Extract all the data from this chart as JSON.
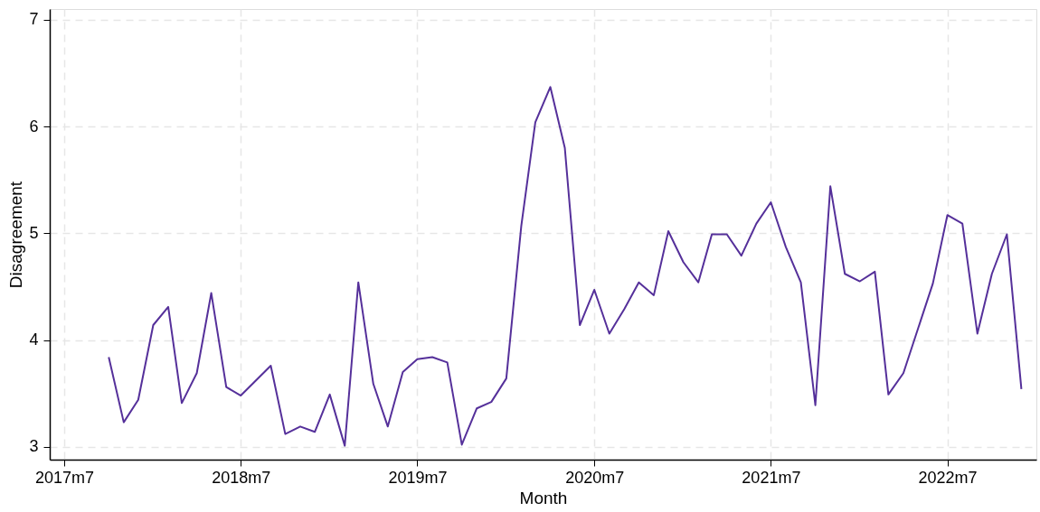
{
  "chart_data": {
    "type": "line",
    "xlabel": "Month",
    "ylabel": "Disagreement",
    "x": [
      "2017-10",
      "2017-11",
      "2017-12",
      "2018-01",
      "2018-02",
      "2018-03",
      "2018-04",
      "2018-05",
      "2018-06",
      "2018-07",
      "2018-09",
      "2018-10",
      "2018-11",
      "2018-12",
      "2019-01",
      "2019-02",
      "2019-03",
      "2019-04",
      "2019-05",
      "2019-06",
      "2019-07",
      "2019-08",
      "2019-09",
      "2019-10",
      "2019-11",
      "2019-12",
      "2020-01",
      "2020-02",
      "2020-03",
      "2020-04",
      "2020-05",
      "2020-06",
      "2020-07",
      "2020-08",
      "2020-09",
      "2020-10",
      "2020-11",
      "2020-12",
      "2021-01",
      "2021-02",
      "2021-03",
      "2021-04",
      "2021-05",
      "2021-06",
      "2021-07",
      "2021-08",
      "2021-09",
      "2021-10",
      "2021-11",
      "2021-12",
      "2022-01",
      "2022-02",
      "2022-03",
      "2022-04",
      "2022-06",
      "2022-07",
      "2022-08",
      "2022-09",
      "2022-10",
      "2022-11",
      "2022-12"
    ],
    "series": [
      {
        "color": "#55309a",
        "values": [
          3.84,
          3.23,
          3.44,
          4.14,
          4.31,
          3.41,
          3.69,
          4.44,
          3.56,
          3.48,
          3.76,
          3.12,
          3.19,
          3.14,
          3.49,
          3.01,
          4.54,
          3.59,
          3.19,
          3.7,
          3.82,
          3.84,
          3.79,
          3.02,
          3.36,
          3.42,
          3.64,
          5.07,
          6.04,
          6.37,
          5.8,
          4.14,
          4.47,
          4.06,
          4.29,
          4.54,
          4.42,
          5.02,
          4.73,
          4.54,
          4.99,
          4.99,
          4.79,
          5.09,
          5.29,
          4.87,
          4.54,
          3.39,
          5.44,
          4.62,
          4.55,
          4.64,
          3.49,
          3.69,
          4.53,
          5.17,
          5.09,
          4.06,
          4.62,
          4.99,
          3.54
        ]
      }
    ],
    "xlim": [
      "2017-06",
      "2023-01"
    ],
    "xticks": [
      {
        "value": "2017-07",
        "label": "2017m7"
      },
      {
        "value": "2018-07",
        "label": "2018m7"
      },
      {
        "value": "2019-07",
        "label": "2019m7"
      },
      {
        "value": "2020-07",
        "label": "2020m7"
      },
      {
        "value": "2021-07",
        "label": "2021m7"
      },
      {
        "value": "2022-07",
        "label": "2022m7"
      }
    ],
    "ylim": [
      2.88,
      7.1
    ],
    "yticks": [
      3,
      4,
      5,
      6,
      7
    ],
    "grid": true,
    "legend": false,
    "marker": "none",
    "line_style": "solid"
  }
}
